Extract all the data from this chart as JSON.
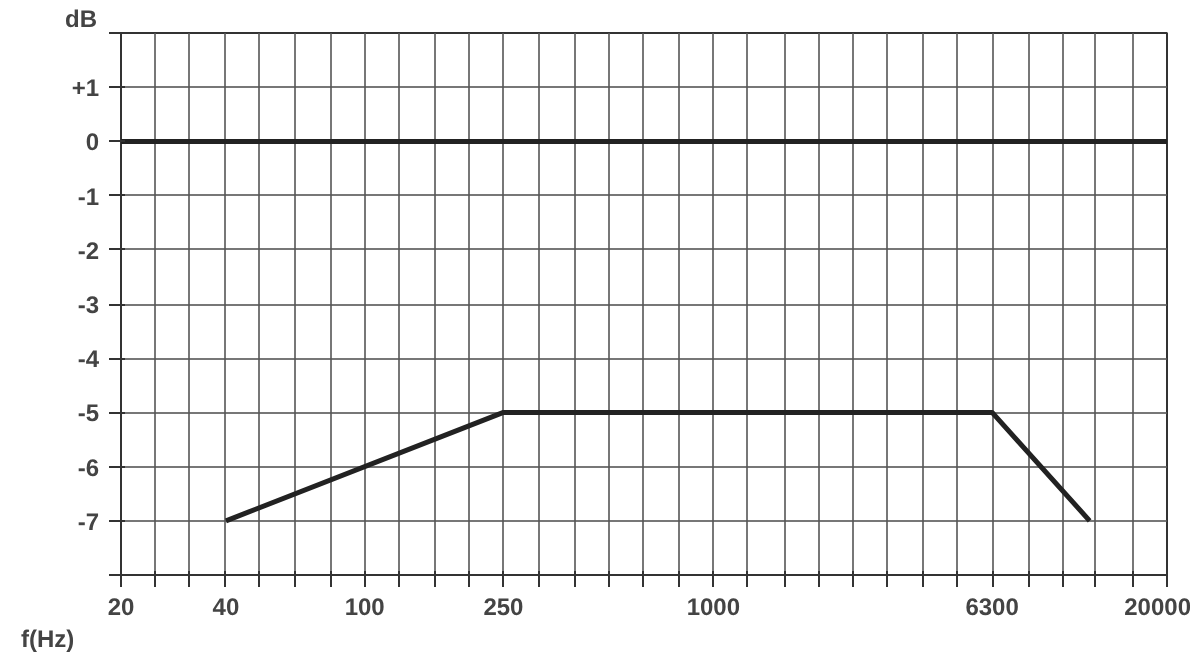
{
  "chart_data": {
    "type": "line",
    "xlabel": "f(Hz)",
    "ylabel": "dB",
    "log": "x",
    "grid": true,
    "marker": "none",
    "line_style": "solid",
    "xlim": [
      20,
      20000
    ],
    "ylim": [
      -8,
      2
    ],
    "xticks": [
      20,
      {
        "value": 25,
        "label": null
      },
      {
        "value": 31.5,
        "label": null
      },
      40,
      {
        "value": 50,
        "label": null
      },
      {
        "value": 63,
        "label": null
      },
      {
        "value": 80,
        "label": null
      },
      100,
      {
        "value": 125,
        "label": null
      },
      {
        "value": 160,
        "label": null
      },
      {
        "value": 200,
        "label": null
      },
      250,
      {
        "value": 315,
        "label": null
      },
      {
        "value": 400,
        "label": null
      },
      {
        "value": 500,
        "label": null
      },
      {
        "value": 630,
        "label": null
      },
      {
        "value": 800,
        "label": null
      },
      1000,
      {
        "value": 1250,
        "label": null
      },
      {
        "value": 1600,
        "label": null
      },
      {
        "value": 2000,
        "label": null
      },
      {
        "value": 2500,
        "label": null
      },
      {
        "value": 3150,
        "label": null
      },
      {
        "value": 4000,
        "label": null
      },
      {
        "value": 5000,
        "label": null
      },
      6300,
      {
        "value": 8000,
        "label": null
      },
      {
        "value": 10000,
        "label": null
      },
      {
        "value": 12500,
        "label": null
      },
      {
        "value": 16000,
        "label": null
      },
      20000
    ],
    "yticks": [
      {
        "value": -8,
        "label": null
      },
      -7,
      -6,
      -5,
      -4,
      -3,
      -2,
      -1,
      0,
      {
        "value": 1,
        "label": "+1"
      },
      {
        "value": 2,
        "label": null
      }
    ],
    "series": [
      {
        "color": "#222222",
        "x": [
          20,
          20000
        ],
        "values": [
          0,
          0
        ]
      },
      {
        "color": "#222222",
        "x": [
          40,
          250,
          6300,
          12000
        ],
        "values": [
          -7,
          -5,
          -5,
          -7
        ]
      }
    ]
  }
}
